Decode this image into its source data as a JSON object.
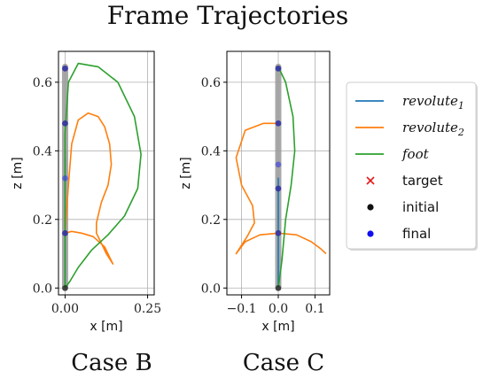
{
  "figure": {
    "title": "Frame Trajectories"
  },
  "legend": {
    "entries": [
      {
        "label": "revolute",
        "sub": "1",
        "kind": "line",
        "color": "#1f77b4",
        "italic": true
      },
      {
        "label": "revolute",
        "sub": "2",
        "kind": "line",
        "color": "#ff7f0e",
        "italic": true
      },
      {
        "label": "foot",
        "sub": "",
        "kind": "line",
        "color": "#2ca02c",
        "italic": true
      },
      {
        "label": "target",
        "sub": "",
        "kind": "x-marker",
        "color": "#e41a1c",
        "italic": false
      },
      {
        "label": "initial",
        "sub": "",
        "kind": "dot",
        "color": "#111111",
        "italic": false
      },
      {
        "label": "final",
        "sub": "",
        "kind": "dot",
        "color": "#1010ee",
        "italic": false
      }
    ]
  },
  "chart_data": [
    {
      "type": "line",
      "title": "Case B",
      "xlabel": "x [m]",
      "ylabel": "z [m]",
      "xlim": [
        -0.02,
        0.27
      ],
      "ylim": [
        -0.02,
        0.69
      ],
      "xticks": [
        0.0,
        0.25
      ],
      "xtick_labels": [
        "0.00",
        "0.25"
      ],
      "yticks": [
        0.0,
        0.2,
        0.4,
        0.6
      ],
      "ytick_labels": [
        "0.0",
        "0.2",
        "0.4",
        "0.6"
      ],
      "grid": true,
      "series": [
        {
          "name": "revolute1",
          "color": "#1f77b4",
          "x": [
            0.0,
            0.0,
            0.0,
            0.0,
            0.0
          ],
          "y": [
            0.0,
            0.16,
            0.32,
            0.38,
            0.16
          ]
        },
        {
          "name": "revolute2",
          "color": "#ff7f0e",
          "x": [
            0.0,
            0.01,
            0.02,
            0.04,
            0.07,
            0.1,
            0.12,
            0.135,
            0.14,
            0.13,
            0.11,
            0.095,
            0.095,
            0.105,
            0.125,
            0.145,
            0.12,
            0.085,
            0.05,
            0.02,
            0.0
          ],
          "y": [
            0.16,
            0.3,
            0.42,
            0.49,
            0.51,
            0.5,
            0.47,
            0.42,
            0.36,
            0.3,
            0.25,
            0.19,
            0.16,
            0.14,
            0.1,
            0.07,
            0.12,
            0.15,
            0.16,
            0.165,
            0.16
          ]
        },
        {
          "name": "foot",
          "color": "#2ca02c",
          "x": [
            0.0,
            0.0,
            0.01,
            0.04,
            0.1,
            0.16,
            0.21,
            0.23,
            0.22,
            0.18,
            0.13,
            0.08,
            0.04,
            0.015,
            0.0
          ],
          "y": [
            0.0,
            0.45,
            0.6,
            0.655,
            0.645,
            0.6,
            0.5,
            0.39,
            0.29,
            0.21,
            0.155,
            0.11,
            0.06,
            0.02,
            0.0
          ]
        }
      ],
      "links": {
        "x": [
          0.0,
          0.0
        ],
        "y": [
          0.0,
          0.645
        ]
      },
      "initial": {
        "x": [
          0.0,
          0.0,
          0.0,
          0.0
        ],
        "y": [
          0.0,
          0.16,
          0.48,
          0.64
        ]
      },
      "final": {
        "x": [
          0.0,
          0.0,
          0.0,
          0.0
        ],
        "y": [
          0.16,
          0.32,
          0.48,
          0.64
        ]
      }
    },
    {
      "type": "line",
      "title": "Case C",
      "xlabel": "x [m]",
      "ylabel": "z [m]",
      "xlim": [
        -0.14,
        0.14
      ],
      "ylim": [
        -0.02,
        0.69
      ],
      "xticks": [
        -0.1,
        0.0,
        0.1
      ],
      "xtick_labels": [
        "−0.1",
        "0.0",
        "0.1"
      ],
      "yticks": [
        0.0,
        0.2,
        0.4,
        0.6
      ],
      "ytick_labels": [
        "0.0",
        "0.2",
        "0.4",
        "0.6"
      ],
      "grid": true,
      "series": [
        {
          "name": "revolute1",
          "color": "#1f77b4",
          "x": [
            0.0,
            0.0,
            0.0,
            0.0
          ],
          "y": [
            0.0,
            0.16,
            0.32,
            0.16
          ]
        },
        {
          "name": "revolute2",
          "color": "#ff7f0e",
          "x": [
            0.0,
            -0.04,
            -0.09,
            -0.115,
            -0.1,
            -0.07,
            -0.065,
            -0.085,
            -0.115,
            -0.09,
            -0.05,
            0.0,
            0.05,
            0.09,
            0.115,
            0.13
          ],
          "y": [
            0.48,
            0.48,
            0.46,
            0.38,
            0.3,
            0.24,
            0.19,
            0.15,
            0.1,
            0.135,
            0.155,
            0.16,
            0.155,
            0.135,
            0.115,
            0.1
          ]
        },
        {
          "name": "foot",
          "color": "#2ca02c",
          "x": [
            0.0,
            0.02,
            0.04,
            0.045,
            0.035,
            0.02,
            0.01,
            0.0
          ],
          "y": [
            0.645,
            0.6,
            0.5,
            0.4,
            0.3,
            0.2,
            0.08,
            0.0
          ]
        }
      ],
      "links": {
        "x": [
          0.0,
          0.0
        ],
        "y": [
          0.0,
          0.645
        ]
      },
      "initial": {
        "x": [
          0.0,
          0.0,
          0.0,
          0.0,
          0.0
        ],
        "y": [
          0.0,
          0.16,
          0.29,
          0.48,
          0.64
        ]
      },
      "final": {
        "x": [
          0.0,
          0.0,
          0.0,
          0.0,
          0.0
        ],
        "y": [
          0.16,
          0.29,
          0.36,
          0.48,
          0.64
        ]
      }
    }
  ]
}
